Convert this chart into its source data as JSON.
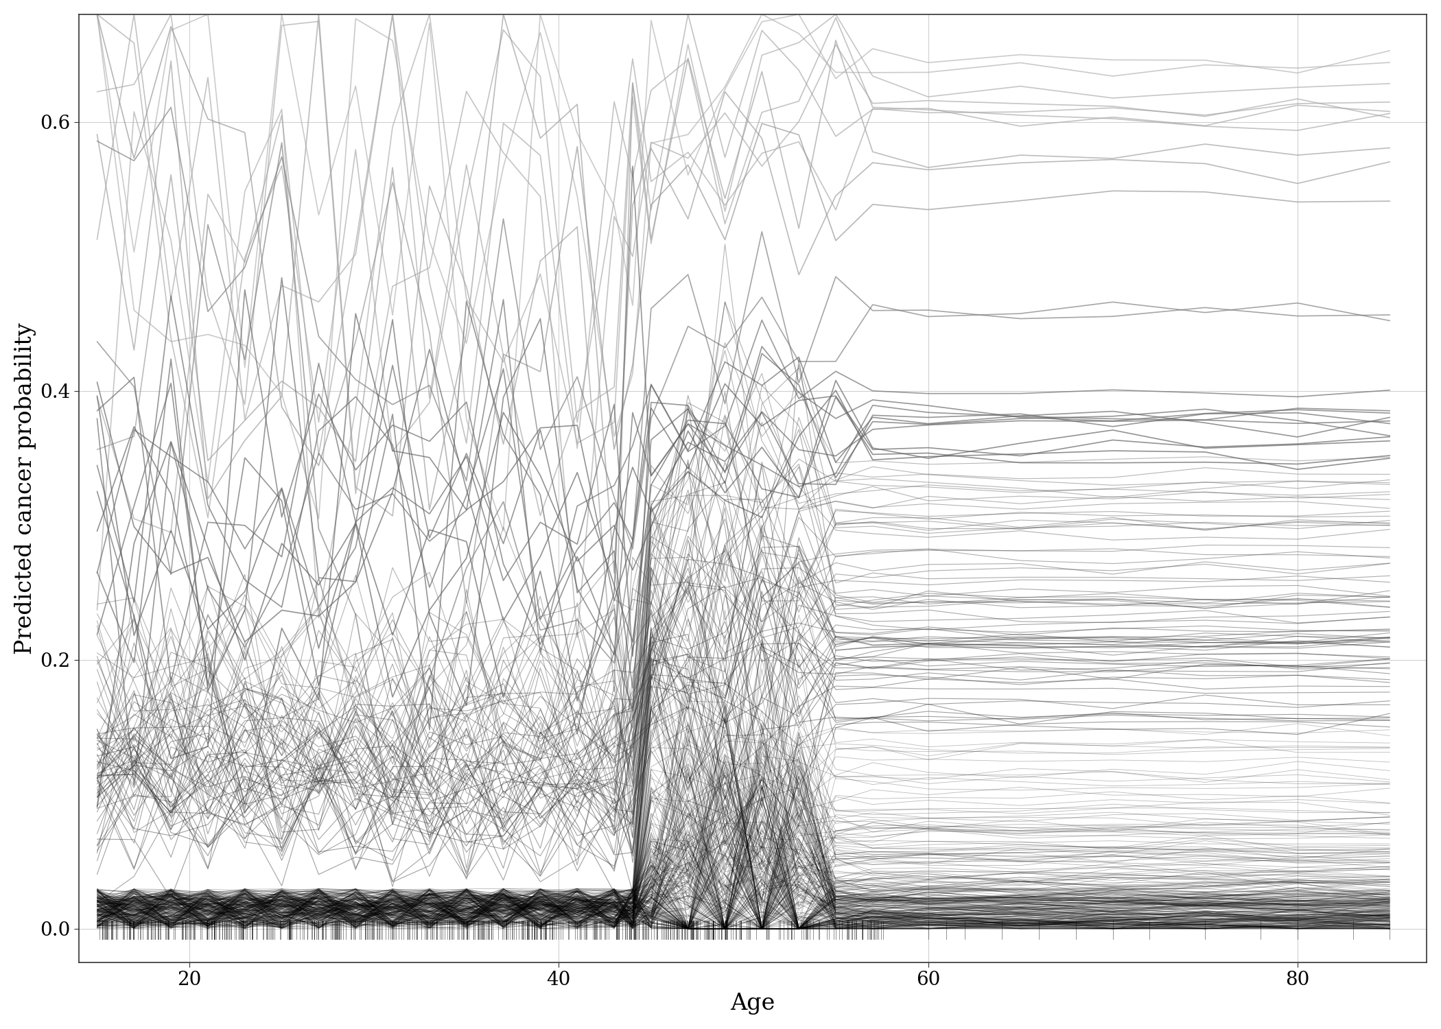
{
  "title": "",
  "xlabel": "Age",
  "ylabel": "Predicted cancer probability",
  "xlim": [
    14,
    87
  ],
  "ylim": [
    -0.025,
    0.68
  ],
  "yticks": [
    0.0,
    0.2,
    0.4,
    0.6
  ],
  "xticks": [
    20,
    40,
    60,
    80
  ],
  "background_color": "#ffffff",
  "grid_color": "#cccccc",
  "n_lines": 350,
  "seed": 123,
  "rug_color": "#000000"
}
